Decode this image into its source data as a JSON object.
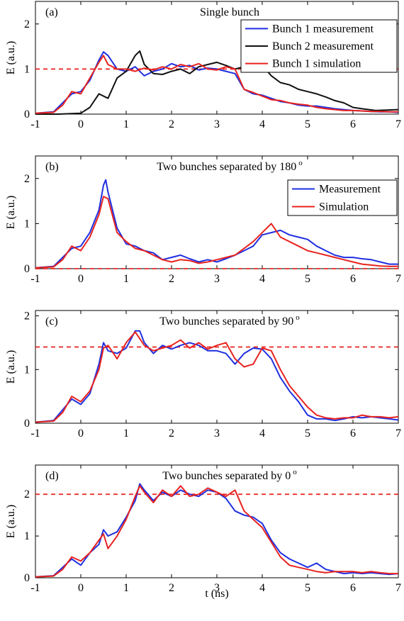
{
  "figure": {
    "xlabel": "t (ns)"
  },
  "chart_data": [
    {
      "type": "line",
      "panel_label": "(a)",
      "title": "Single bunch",
      "xlabel": "",
      "ylabel": "E (a.u.)",
      "xlim": [
        -1,
        7
      ],
      "ylim": [
        0,
        2.5
      ],
      "xticks": [
        -1,
        0,
        1,
        2,
        3,
        4,
        5,
        6,
        7
      ],
      "yticks": [
        0,
        1,
        2
      ],
      "reference_line": {
        "y": 1.0,
        "color": "#e8231f",
        "style": "dashed"
      },
      "legend": {
        "placement": "top-right"
      },
      "series": [
        {
          "name": "Bunch 1 measurement",
          "color": "#1f2fe0",
          "x": [
            -1,
            -0.6,
            -0.4,
            -0.2,
            0,
            0.2,
            0.4,
            0.5,
            0.6,
            0.8,
            1,
            1.2,
            1.4,
            1.6,
            1.8,
            2,
            2.2,
            2.4,
            2.6,
            2.8,
            3,
            3.2,
            3.4,
            3.6,
            3.8,
            4,
            4.2,
            4.4,
            4.6,
            4.8,
            5,
            5.2,
            5.4,
            5.6,
            5.8,
            6,
            6.2,
            6.4,
            6.6,
            6.8,
            7
          ],
          "y": [
            0.02,
            0.05,
            0.25,
            0.45,
            0.5,
            0.75,
            1.2,
            1.38,
            1.3,
            1.0,
            0.95,
            1.05,
            0.85,
            0.95,
            1.0,
            1.12,
            1.05,
            1.08,
            0.98,
            1.02,
            1.0,
            0.95,
            0.9,
            0.55,
            0.45,
            0.42,
            0.35,
            0.28,
            0.25,
            0.2,
            0.18,
            0.18,
            0.15,
            0.12,
            0.1,
            0.08,
            0.07,
            0.06,
            0.05,
            0.05,
            0.04
          ]
        },
        {
          "name": "Bunch 2 measurement",
          "color": "#111111",
          "x": [
            -1,
            -0.5,
            0,
            0.2,
            0.4,
            0.6,
            0.8,
            1.0,
            1.2,
            1.3,
            1.4,
            1.6,
            1.8,
            2.0,
            2.2,
            2.4,
            2.6,
            2.8,
            3.0,
            3.2,
            3.4,
            3.6,
            3.8,
            4.0,
            4.2,
            4.4,
            4.6,
            4.8,
            5.0,
            5.2,
            5.4,
            5.6,
            5.8,
            6.0,
            6.2,
            6.5,
            7
          ],
          "y": [
            0.0,
            0.0,
            0.02,
            0.15,
            0.45,
            0.35,
            0.8,
            0.95,
            1.3,
            1.4,
            1.1,
            0.9,
            0.88,
            0.95,
            1.0,
            0.9,
            1.05,
            1.1,
            1.15,
            1.08,
            1.0,
            1.05,
            1.1,
            1.08,
            0.85,
            0.7,
            0.65,
            0.55,
            0.5,
            0.45,
            0.38,
            0.3,
            0.25,
            0.15,
            0.12,
            0.08,
            0.1
          ]
        },
        {
          "name": "Bunch 1 simulation",
          "color": "#e8231f",
          "x": [
            -1,
            -0.6,
            -0.4,
            -0.2,
            0,
            0.2,
            0.4,
            0.5,
            0.6,
            0.8,
            1,
            1.2,
            1.4,
            1.6,
            1.8,
            2,
            2.2,
            2.4,
            2.6,
            2.8,
            3,
            3.2,
            3.4,
            3.6,
            3.8,
            4,
            4.2,
            4.4,
            4.6,
            4.8,
            5,
            5.2,
            5.4,
            5.6,
            5.8,
            6,
            6.2,
            6.4,
            6.6,
            6.8,
            7
          ],
          "y": [
            0.02,
            0.04,
            0.2,
            0.5,
            0.45,
            0.8,
            1.15,
            1.3,
            1.1,
            1.0,
            1.0,
            0.95,
            1.02,
            0.98,
            1.05,
            1.0,
            1.1,
            1.05,
            1.12,
            1.0,
            0.98,
            1.05,
            1.0,
            0.55,
            0.48,
            0.4,
            0.32,
            0.3,
            0.25,
            0.22,
            0.2,
            0.15,
            0.12,
            0.1,
            0.08,
            0.08,
            0.07,
            0.06,
            0.06,
            0.05,
            0.05
          ]
        }
      ]
    },
    {
      "type": "line",
      "panel_label": "(b)",
      "title": "Two bunches separated by 180",
      "title_superscript": "o",
      "xlabel": "",
      "ylabel": "E (a.u.)",
      "xlim": [
        -1,
        7
      ],
      "ylim": [
        0,
        2.5
      ],
      "xticks": [
        -1,
        0,
        1,
        2,
        3,
        4,
        5,
        6,
        7
      ],
      "yticks": [
        0,
        1,
        2
      ],
      "reference_line": {
        "y": 0.0,
        "color": "#e8231f",
        "style": "dashed"
      },
      "legend": {
        "placement": "top-right"
      },
      "series": [
        {
          "name": "Measurement",
          "color": "#1f2fe0",
          "x": [
            -1,
            -0.6,
            -0.4,
            -0.2,
            0,
            0.2,
            0.4,
            0.5,
            0.55,
            0.6,
            0.8,
            1,
            1.2,
            1.4,
            1.6,
            1.8,
            2,
            2.2,
            2.4,
            2.6,
            2.8,
            3,
            3.2,
            3.4,
            3.6,
            3.8,
            4,
            4.2,
            4.4,
            4.6,
            4.8,
            5,
            5.2,
            5.4,
            5.6,
            5.8,
            6,
            6.2,
            6.4,
            6.6,
            6.8,
            7
          ],
          "y": [
            0.02,
            0.05,
            0.25,
            0.45,
            0.5,
            0.8,
            1.3,
            1.85,
            1.97,
            1.7,
            0.9,
            0.55,
            0.5,
            0.4,
            0.35,
            0.2,
            0.25,
            0.3,
            0.22,
            0.15,
            0.2,
            0.15,
            0.22,
            0.3,
            0.4,
            0.5,
            0.75,
            0.8,
            0.85,
            0.75,
            0.7,
            0.65,
            0.5,
            0.4,
            0.3,
            0.25,
            0.25,
            0.22,
            0.2,
            0.15,
            0.1,
            0.1
          ]
        },
        {
          "name": "Simulation",
          "color": "#e8231f",
          "x": [
            -1,
            -0.6,
            -0.4,
            -0.2,
            0,
            0.2,
            0.4,
            0.5,
            0.6,
            0.8,
            1,
            1.2,
            1.4,
            1.6,
            1.8,
            2,
            2.2,
            2.4,
            2.6,
            2.8,
            3,
            3.2,
            3.4,
            3.6,
            3.8,
            4,
            4.2,
            4.4,
            4.6,
            4.8,
            5,
            5.2,
            5.4,
            5.6,
            5.8,
            6,
            6.2,
            6.4,
            6.6,
            6.8,
            7
          ],
          "y": [
            0.02,
            0.04,
            0.2,
            0.5,
            0.4,
            0.7,
            1.2,
            1.6,
            1.55,
            0.8,
            0.6,
            0.45,
            0.4,
            0.3,
            0.2,
            0.15,
            0.2,
            0.18,
            0.12,
            0.15,
            0.2,
            0.25,
            0.3,
            0.45,
            0.6,
            0.8,
            1.0,
            0.7,
            0.6,
            0.5,
            0.4,
            0.35,
            0.3,
            0.25,
            0.2,
            0.15,
            0.1,
            0.08,
            0.06,
            0.05,
            0.05
          ]
        }
      ]
    },
    {
      "type": "line",
      "panel_label": "(c)",
      "title": "Two bunches separated by 90",
      "title_superscript": "o",
      "xlabel": "",
      "ylabel": "E (a.u.)",
      "xlim": [
        -1,
        7
      ],
      "ylim": [
        0,
        2.1
      ],
      "xticks": [
        -1,
        0,
        1,
        2,
        3,
        4,
        5,
        6,
        7
      ],
      "yticks": [
        0,
        1,
        2
      ],
      "reference_line": {
        "y": 1.42,
        "color": "#e8231f",
        "style": "dashed"
      },
      "series": [
        {
          "name": "",
          "color": "#1f2fe0",
          "x": [
            -1,
            -0.6,
            -0.4,
            -0.2,
            0,
            0.2,
            0.4,
            0.5,
            0.6,
            0.8,
            1,
            1.2,
            1.3,
            1.4,
            1.6,
            1.8,
            2,
            2.2,
            2.4,
            2.6,
            2.8,
            3,
            3.2,
            3.4,
            3.6,
            3.8,
            4,
            4.2,
            4.4,
            4.6,
            4.8,
            5,
            5.2,
            5.4,
            5.6,
            5.8,
            6,
            6.2,
            6.4,
            6.6,
            6.8,
            7
          ],
          "y": [
            0.02,
            0.05,
            0.25,
            0.45,
            0.35,
            0.55,
            1.1,
            1.5,
            1.35,
            1.3,
            1.4,
            1.72,
            1.72,
            1.5,
            1.3,
            1.45,
            1.38,
            1.45,
            1.5,
            1.45,
            1.35,
            1.35,
            1.3,
            1.1,
            1.3,
            1.4,
            1.38,
            1.2,
            0.85,
            0.6,
            0.4,
            0.15,
            0.08,
            0.08,
            0.05,
            0.08,
            0.12,
            0.1,
            0.12,
            0.1,
            0.08,
            0.06
          ]
        },
        {
          "name": "",
          "color": "#e8231f",
          "x": [
            -1,
            -0.6,
            -0.4,
            -0.2,
            0,
            0.2,
            0.4,
            0.5,
            0.6,
            0.8,
            1,
            1.2,
            1.4,
            1.6,
            1.8,
            2,
            2.2,
            2.4,
            2.6,
            2.8,
            3,
            3.2,
            3.4,
            3.6,
            3.8,
            4,
            4.2,
            4.4,
            4.6,
            4.8,
            5,
            5.2,
            5.4,
            5.6,
            5.8,
            6,
            6.2,
            6.4,
            6.6,
            6.8,
            7
          ],
          "y": [
            0.02,
            0.04,
            0.2,
            0.5,
            0.4,
            0.6,
            1.0,
            1.4,
            1.45,
            1.2,
            1.5,
            1.7,
            1.45,
            1.35,
            1.4,
            1.45,
            1.55,
            1.4,
            1.5,
            1.38,
            1.45,
            1.5,
            1.2,
            1.05,
            1.1,
            1.4,
            1.35,
            1.0,
            0.7,
            0.5,
            0.3,
            0.15,
            0.1,
            0.08,
            0.1,
            0.1,
            0.15,
            0.12,
            0.12,
            0.1,
            0.12
          ]
        }
      ]
    },
    {
      "type": "line",
      "panel_label": "(d)",
      "title": "Two bunches separated by 0",
      "title_superscript": "o",
      "xlabel": "t (ns)",
      "ylabel": "E (a.u.)",
      "xlim": [
        -1,
        7
      ],
      "ylim": [
        0,
        2.7
      ],
      "xticks": [
        -1,
        0,
        1,
        2,
        3,
        4,
        5,
        6,
        7
      ],
      "yticks": [
        0,
        1,
        2
      ],
      "reference_line": {
        "y": 2.0,
        "color": "#e8231f",
        "style": "dashed"
      },
      "series": [
        {
          "name": "",
          "color": "#1f2fe0",
          "x": [
            -1,
            -0.6,
            -0.4,
            -0.2,
            0,
            0.2,
            0.4,
            0.5,
            0.6,
            0.8,
            1,
            1.2,
            1.3,
            1.4,
            1.6,
            1.8,
            2,
            2.2,
            2.4,
            2.6,
            2.8,
            3,
            3.2,
            3.4,
            3.6,
            3.8,
            4,
            4.2,
            4.4,
            4.6,
            4.8,
            5,
            5.2,
            5.4,
            5.6,
            5.8,
            6,
            6.2,
            6.4,
            6.6,
            6.8,
            7
          ],
          "y": [
            0.02,
            0.05,
            0.25,
            0.45,
            0.3,
            0.6,
            0.8,
            1.15,
            1.0,
            1.1,
            1.45,
            1.85,
            2.25,
            2.1,
            1.85,
            2.05,
            1.95,
            2.1,
            2.0,
            1.95,
            2.1,
            2.05,
            1.9,
            1.6,
            1.5,
            1.45,
            1.3,
            0.9,
            0.6,
            0.45,
            0.35,
            0.25,
            0.35,
            0.2,
            0.15,
            0.1,
            0.12,
            0.1,
            0.12,
            0.1,
            0.08,
            0.1
          ]
        },
        {
          "name": "",
          "color": "#e8231f",
          "x": [
            -1,
            -0.6,
            -0.4,
            -0.2,
            0,
            0.2,
            0.4,
            0.5,
            0.6,
            0.8,
            1,
            1.2,
            1.3,
            1.4,
            1.6,
            1.8,
            2,
            2.2,
            2.4,
            2.6,
            2.8,
            3,
            3.2,
            3.4,
            3.6,
            3.8,
            4,
            4.2,
            4.4,
            4.6,
            4.8,
            5,
            5.2,
            5.4,
            5.6,
            5.8,
            6,
            6.2,
            6.4,
            6.6,
            6.8,
            7
          ],
          "y": [
            0.02,
            0.04,
            0.2,
            0.5,
            0.4,
            0.6,
            0.9,
            1.05,
            0.7,
            1.0,
            1.4,
            1.95,
            2.2,
            2.05,
            1.8,
            2.1,
            1.95,
            2.2,
            1.95,
            2.0,
            2.15,
            2.05,
            1.95,
            2.1,
            1.6,
            1.4,
            1.2,
            0.85,
            0.5,
            0.3,
            0.25,
            0.2,
            0.15,
            0.12,
            0.15,
            0.15,
            0.15,
            0.12,
            0.15,
            0.12,
            0.1,
            0.1
          ]
        }
      ]
    }
  ]
}
